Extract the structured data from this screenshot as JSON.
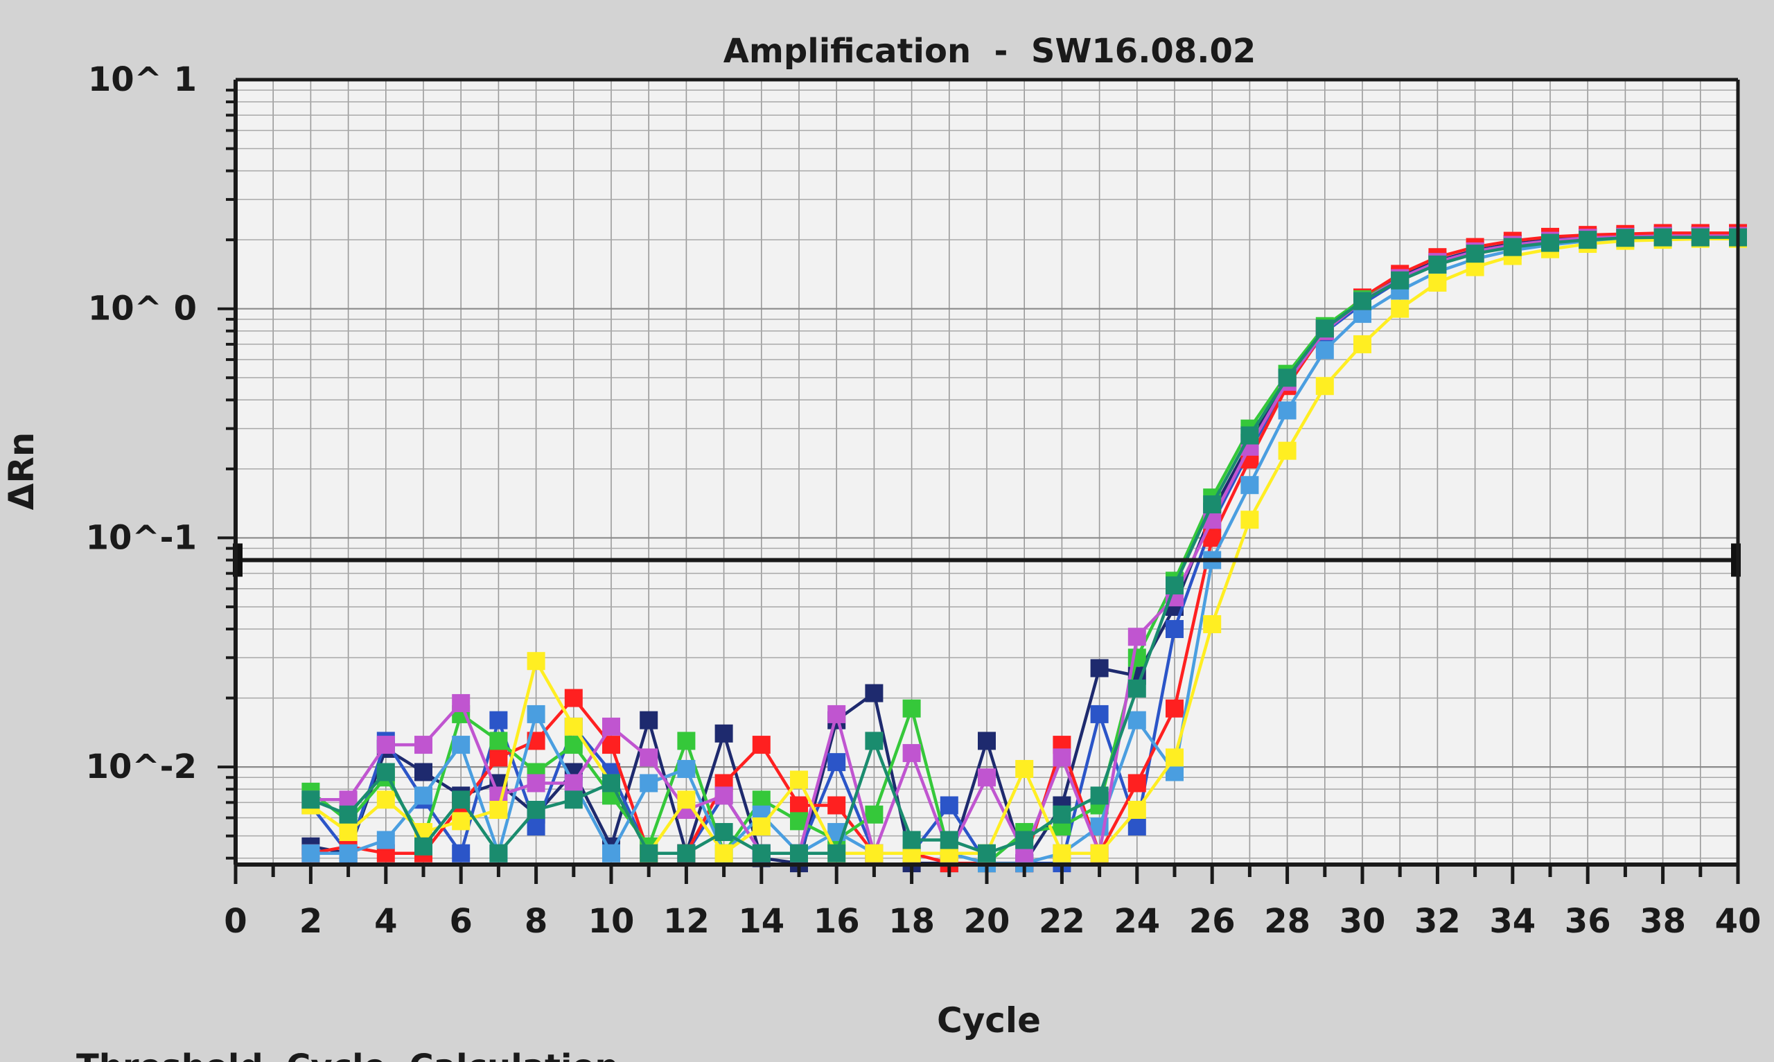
{
  "chart_data": {
    "type": "line",
    "title": "Amplification  -  SW16.08.02",
    "xlabel": "Cycle",
    "ylabel": "ΔRn",
    "x_scale": "linear",
    "y_scale": "log",
    "xlim": [
      0,
      40
    ],
    "ylim": [
      0.00375,
      10
    ],
    "x_ticks": [
      0,
      2,
      4,
      6,
      8,
      10,
      12,
      14,
      16,
      18,
      20,
      22,
      24,
      26,
      28,
      30,
      32,
      34,
      36,
      38,
      40
    ],
    "x_tick_labels": [
      "0",
      "2",
      "4",
      "6",
      "8",
      "10",
      "12",
      "14",
      "16",
      "18",
      "20",
      "22",
      "24",
      "26",
      "28",
      "30",
      "32",
      "34",
      "36",
      "38",
      "40"
    ],
    "y_ticks": [
      10,
      1,
      0.1,
      0.01
    ],
    "y_tick_labels": [
      "10^ 1",
      "10^ 0",
      "10^-1",
      "10^-2"
    ],
    "grid": true,
    "threshold": 0.08,
    "series": [
      {
        "color": "#1e2a6e",
        "x": [
          2,
          3,
          4,
          5,
          6,
          7,
          8,
          9,
          10,
          11,
          12,
          13,
          14,
          15,
          16,
          17,
          18,
          19,
          20,
          21,
          22,
          23,
          24,
          25,
          26,
          27,
          28,
          29,
          30,
          31,
          32,
          33,
          34,
          35,
          36,
          37,
          38,
          39,
          40
        ],
        "y": [
          0.0045,
          0.0042,
          0.012,
          0.0095,
          0.0075,
          0.0085,
          0.0062,
          0.0095,
          0.0045,
          0.016,
          0.0042,
          0.014,
          0.004,
          0.0038,
          0.016,
          0.021,
          0.0038,
          0.0038,
          0.013,
          0.0038,
          0.0068,
          0.027,
          0.025,
          0.05,
          0.13,
          0.26,
          0.5,
          0.82,
          1.1,
          1.38,
          1.62,
          1.8,
          1.92,
          2.0,
          2.06,
          2.08,
          2.1,
          2.1,
          2.1
        ]
      },
      {
        "color": "#2b55c8",
        "x": [
          2,
          3,
          4,
          5,
          6,
          7,
          8,
          9,
          10,
          11,
          12,
          13,
          14,
          15,
          16,
          17,
          18,
          19,
          20,
          21,
          22,
          23,
          24,
          25,
          26,
          27,
          28,
          29,
          30,
          31,
          32,
          33,
          34,
          35,
          36,
          37,
          38,
          39,
          40
        ],
        "y": [
          0.0068,
          0.0042,
          0.013,
          0.0072,
          0.0042,
          0.016,
          0.0055,
          0.015,
          0.0095,
          0.0042,
          0.0042,
          0.0075,
          0.0042,
          0.0042,
          0.0105,
          0.0042,
          0.0042,
          0.0068,
          0.0038,
          0.0038,
          0.0038,
          0.017,
          0.0055,
          0.04,
          0.115,
          0.24,
          0.47,
          0.79,
          1.05,
          1.33,
          1.58,
          1.76,
          1.9,
          1.98,
          2.05,
          2.08,
          2.1,
          2.1,
          2.1
        ]
      },
      {
        "color": "#ff2020",
        "x": [
          2,
          3,
          4,
          5,
          6,
          7,
          8,
          9,
          10,
          11,
          12,
          13,
          14,
          15,
          16,
          17,
          18,
          19,
          20,
          21,
          22,
          23,
          24,
          25,
          26,
          27,
          28,
          29,
          30,
          31,
          32,
          33,
          34,
          35,
          36,
          37,
          38,
          39,
          40
        ],
        "y": [
          0.0042,
          0.0045,
          0.0042,
          0.0042,
          0.0068,
          0.011,
          0.013,
          0.02,
          0.0125,
          0.0042,
          0.0042,
          0.0085,
          0.0125,
          0.0068,
          0.0068,
          0.0042,
          0.0042,
          0.0038,
          0.0038,
          0.0038,
          0.0125,
          0.0042,
          0.0085,
          0.018,
          0.1,
          0.22,
          0.46,
          0.8,
          1.12,
          1.42,
          1.68,
          1.86,
          1.98,
          2.06,
          2.1,
          2.12,
          2.14,
          2.14,
          2.14
        ]
      },
      {
        "color": "#35c83a",
        "x": [
          2,
          3,
          4,
          5,
          6,
          7,
          8,
          9,
          10,
          11,
          12,
          13,
          14,
          15,
          16,
          17,
          18,
          19,
          20,
          21,
          22,
          23,
          24,
          25,
          26,
          27,
          28,
          29,
          30,
          31,
          32,
          33,
          34,
          35,
          36,
          37,
          38,
          39,
          40
        ],
        "y": [
          0.0078,
          0.0058,
          0.009,
          0.0048,
          0.017,
          0.013,
          0.0095,
          0.0125,
          0.0075,
          0.0045,
          0.013,
          0.0042,
          0.0072,
          0.0058,
          0.0048,
          0.0062,
          0.018,
          0.0042,
          0.0038,
          0.0052,
          0.0055,
          0.0068,
          0.03,
          0.065,
          0.15,
          0.3,
          0.52,
          0.84,
          1.1,
          1.35,
          1.58,
          1.76,
          1.88,
          1.96,
          2.02,
          2.05,
          2.06,
          2.06,
          2.06
        ]
      },
      {
        "color": "#4a9ee0",
        "x": [
          2,
          3,
          4,
          5,
          6,
          7,
          8,
          9,
          10,
          11,
          12,
          13,
          14,
          15,
          16,
          17,
          18,
          19,
          20,
          21,
          22,
          23,
          24,
          25,
          26,
          27,
          28,
          29,
          30,
          31,
          32,
          33,
          34,
          35,
          36,
          37,
          38,
          39,
          40
        ],
        "y": [
          0.0042,
          0.0042,
          0.0048,
          0.0075,
          0.0125,
          0.0042,
          0.017,
          0.0085,
          0.0042,
          0.0085,
          0.0098,
          0.0042,
          0.0062,
          0.0042,
          0.0052,
          0.0042,
          0.0042,
          0.0042,
          0.0038,
          0.0038,
          0.0042,
          0.0055,
          0.016,
          0.0095,
          0.08,
          0.17,
          0.36,
          0.66,
          0.95,
          1.2,
          1.45,
          1.65,
          1.8,
          1.9,
          1.98,
          2.02,
          2.05,
          2.05,
          2.05
        ]
      },
      {
        "color": "#c055d0",
        "x": [
          2,
          3,
          4,
          5,
          6,
          7,
          8,
          9,
          10,
          11,
          12,
          13,
          14,
          15,
          16,
          17,
          18,
          19,
          20,
          21,
          22,
          23,
          24,
          25,
          26,
          27,
          28,
          29,
          30,
          31,
          32,
          33,
          34,
          35,
          36,
          37,
          38,
          39,
          40
        ],
        "y": [
          0.0072,
          0.0072,
          0.0125,
          0.0125,
          0.019,
          0.0075,
          0.0085,
          0.0085,
          0.015,
          0.011,
          0.0065,
          0.0075,
          0.0042,
          0.0042,
          0.017,
          0.0042,
          0.0115,
          0.0042,
          0.009,
          0.0042,
          0.011,
          0.0042,
          0.037,
          0.055,
          0.12,
          0.25,
          0.48,
          0.8,
          1.08,
          1.36,
          1.6,
          1.78,
          1.9,
          1.98,
          2.04,
          2.06,
          2.08,
          2.08,
          2.08
        ]
      },
      {
        "color": "#ffee22",
        "x": [
          2,
          3,
          4,
          5,
          6,
          7,
          8,
          9,
          10,
          11,
          12,
          13,
          14,
          15,
          16,
          17,
          18,
          19,
          20,
          21,
          22,
          23,
          24,
          25,
          26,
          27,
          28,
          29,
          30,
          31,
          32,
          33,
          34,
          35,
          36,
          37,
          38,
          39,
          40
        ],
        "y": [
          0.0068,
          0.0052,
          0.0072,
          0.0052,
          0.0058,
          0.0065,
          0.029,
          0.015,
          0.0085,
          0.0042,
          0.0072,
          0.0042,
          0.0055,
          0.0088,
          0.0042,
          0.0042,
          0.0042,
          0.0042,
          0.0042,
          0.0098,
          0.0042,
          0.0042,
          0.0065,
          0.011,
          0.042,
          0.12,
          0.24,
          0.46,
          0.7,
          1.0,
          1.3,
          1.52,
          1.7,
          1.82,
          1.92,
          1.98,
          2.0,
          2.02,
          2.02
        ]
      },
      {
        "color": "#1a8c6e",
        "x": [
          2,
          3,
          4,
          5,
          6,
          7,
          8,
          9,
          10,
          11,
          12,
          13,
          14,
          15,
          16,
          17,
          18,
          19,
          20,
          21,
          22,
          23,
          24,
          25,
          26,
          27,
          28,
          29,
          30,
          31,
          32,
          33,
          34,
          35,
          36,
          37,
          38,
          39,
          40
        ],
        "y": [
          0.0072,
          0.0062,
          0.0095,
          0.0045,
          0.0072,
          0.0042,
          0.0065,
          0.0072,
          0.0085,
          0.0042,
          0.0042,
          0.0052,
          0.0042,
          0.0042,
          0.0042,
          0.013,
          0.0048,
          0.0048,
          0.0042,
          0.0048,
          0.0062,
          0.0075,
          0.022,
          0.062,
          0.14,
          0.28,
          0.5,
          0.82,
          1.08,
          1.33,
          1.56,
          1.74,
          1.86,
          1.94,
          2.0,
          2.04,
          2.05,
          2.05,
          2.05
        ]
      }
    ]
  },
  "footer": {
    "text": "Threshold  Cycle  Calculation"
  }
}
